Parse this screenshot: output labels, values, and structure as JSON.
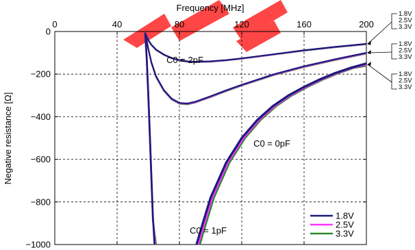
{
  "chart_data": {
    "type": "line",
    "xlabel": "Frequency [MHz]",
    "ylabel": "Negative resistance [Ω]",
    "xlim": [
      0,
      200
    ],
    "ylim": [
      -1000,
      0
    ],
    "x_ticks": [
      "0",
      "40",
      "80",
      "120",
      "160",
      "200"
    ],
    "y_ticks": [
      "0",
      "−200",
      "−400",
      "−600",
      "−800",
      "−1000"
    ],
    "grid": true,
    "legend_position": "bottom-right",
    "legend": [
      "1.8V",
      "2.5V",
      "3.3V"
    ],
    "colors": {
      "1.8V": "#1a1a7a",
      "2.5V": "#ff33ff",
      "3.3V": "#2a8a2a"
    },
    "annotations": [
      "C0 = 2pF",
      "C0 = 1pF",
      "C0 = 0pF"
    ],
    "side_labels": [
      [
        "1.8V",
        "2.5V",
        "3.3V"
      ],
      [
        "1.8V",
        "2.5V",
        "3.3V"
      ],
      [
        "1.8V",
        "2.5V",
        "3.3V"
      ]
    ],
    "watermark_text": "",
    "groups": [
      {
        "name": "C0 = 2pF",
        "series": [
          {
            "name": "1.8V",
            "x": [
              58,
              60,
              62,
              65,
              70,
              75,
              80,
              85,
              90,
              100,
              110,
              120,
              140,
              160,
              180,
              200
            ],
            "y": [
              -5,
              -40,
              -62,
              -85,
              -108,
              -124,
              -134,
              -140,
              -142,
              -140,
              -134,
              -126,
              -107,
              -88,
              -72,
              -58
            ]
          },
          {
            "name": "2.5V",
            "x": [
              58,
              60,
              62,
              65,
              70,
              75,
              80,
              85,
              90,
              100,
              110,
              120,
              140,
              160,
              180,
              200
            ],
            "y": [
              -5,
              -41,
              -63,
              -86,
              -109,
              -125,
              -135,
              -141,
              -143,
              -141,
              -135,
              -127,
              -108,
              -89,
              -73,
              -59
            ]
          },
          {
            "name": "3.3V",
            "x": [
              58,
              60,
              62,
              65,
              70,
              75,
              80,
              85,
              90,
              100,
              110,
              120,
              140,
              160,
              180,
              200
            ],
            "y": [
              -6,
              -42,
              -64,
              -87,
              -110,
              -126,
              -136,
              -142,
              -144,
              -142,
              -136,
              -128,
              -109,
              -90,
              -74,
              -60
            ]
          }
        ]
      },
      {
        "name": "C0 = 1pF",
        "series": [
          {
            "name": "1.8V",
            "x": [
              58,
              60,
              62,
              65,
              70,
              75,
              80,
              85,
              90,
              100,
              110,
              120,
              140,
              160,
              180,
              200
            ],
            "y": [
              -5,
              -80,
              -145,
              -210,
              -275,
              -315,
              -335,
              -338,
              -330,
              -304,
              -276,
              -250,
              -202,
              -163,
              -130,
              -100
            ]
          },
          {
            "name": "2.5V",
            "x": [
              58,
              60,
              62,
              65,
              70,
              75,
              80,
              85,
              90,
              100,
              110,
              120,
              140,
              160,
              180,
              200
            ],
            "y": [
              -5,
              -81,
              -146,
              -212,
              -277,
              -317,
              -337,
              -340,
              -332,
              -306,
              -278,
              -252,
              -204,
              -165,
              -132,
              -102
            ]
          },
          {
            "name": "3.3V",
            "x": [
              58,
              60,
              62,
              65,
              70,
              75,
              80,
              85,
              90,
              100,
              110,
              120,
              140,
              160,
              180,
              200
            ],
            "y": [
              -6,
              -82,
              -148,
              -214,
              -279,
              -319,
              -339,
              -342,
              -334,
              -308,
              -280,
              -254,
              -206,
              -167,
              -134,
              -104
            ]
          }
        ]
      },
      {
        "name": "C0 = 0pF",
        "series": [
          {
            "name": "1.8V",
            "x": [
              58,
              59,
              60,
              61,
              62,
              63,
              64
            ],
            "y": [
              -5,
              -120,
              -290,
              -480,
              -680,
              -870,
              -1000
            ],
            "x2": [
              91,
              95,
              100,
              110,
              120,
              130,
              140,
              150,
              160,
              170,
              180,
              190,
              200
            ],
            "y2": [
              -1000,
              -900,
              -780,
              -615,
              -500,
              -415,
              -350,
              -300,
              -260,
              -225,
              -195,
              -170,
              -150
            ]
          },
          {
            "name": "2.5V",
            "x": [
              58,
              59,
              60,
              61,
              62,
              63,
              64.5
            ],
            "y": [
              -5,
              -122,
              -295,
              -490,
              -690,
              -880,
              -1000
            ],
            "x2": [
              92,
              96,
              101,
              111,
              121,
              131,
              141,
              151,
              161,
              171,
              181,
              191,
              200
            ],
            "y2": [
              -1000,
              -900,
              -780,
              -615,
              -500,
              -415,
              -350,
              -300,
              -260,
              -225,
              -195,
              -170,
              -155
            ]
          },
          {
            "name": "3.3V",
            "x": [
              58,
              59,
              60,
              61,
              62,
              63,
              65
            ],
            "y": [
              -6,
              -125,
              -300,
              -500,
              -700,
              -890,
              -1000
            ],
            "x2": [
              93,
              97,
              102,
              112,
              122,
              132,
              142,
              152,
              162,
              172,
              182,
              192,
              200
            ],
            "y2": [
              -1000,
              -900,
              -780,
              -615,
              -500,
              -415,
              -350,
              -300,
              -260,
              -225,
              -195,
              -170,
              -160
            ]
          }
        ]
      }
    ]
  }
}
